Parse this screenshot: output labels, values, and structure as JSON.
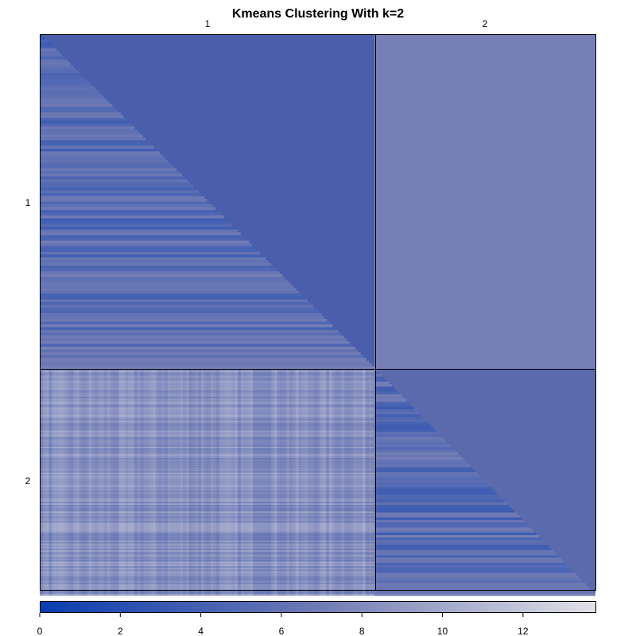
{
  "chart_data": {
    "type": "heatmap",
    "title": "Kmeans Clustering With k=2",
    "clusters": [
      "1",
      "2"
    ],
    "cluster_sizes": [
      420,
      277
    ],
    "block_mean_colors": {
      "upper_left": "#4b5eab",
      "upper_right": "#767fb6",
      "lower_right": "#5a6aad"
    },
    "colorbar": {
      "min": 0,
      "max": 13.8,
      "ticks": [
        "0",
        "2",
        "4",
        "6",
        "8",
        "10",
        "12"
      ],
      "tick_values": [
        0,
        2,
        4,
        6,
        8,
        10,
        12
      ],
      "low_color": "#0a3db0",
      "high_color": "#e2e2e6"
    }
  }
}
